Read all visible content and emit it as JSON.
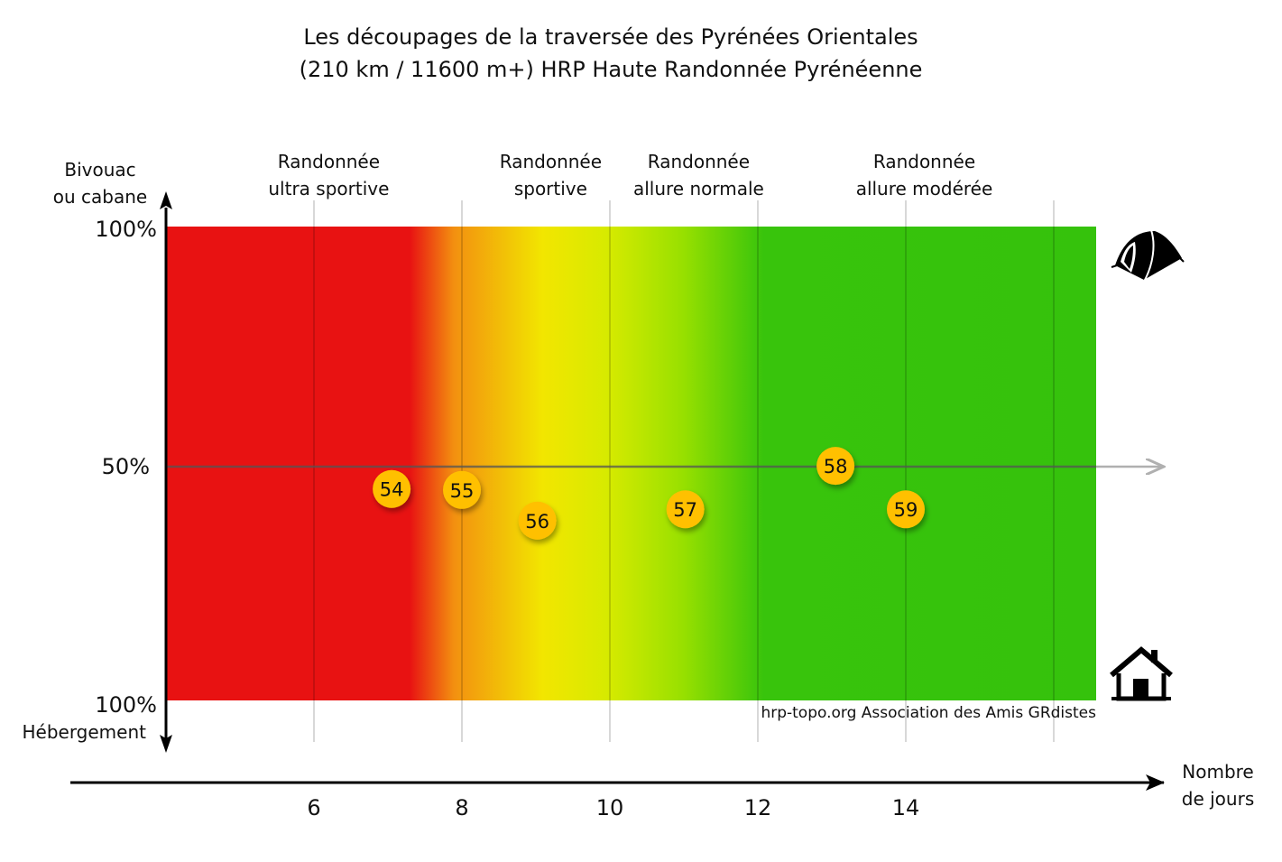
{
  "chart_data": {
    "type": "scatter",
    "title_line1": "Les découpages de la traversée des Pyrénées Orientales",
    "title_line2": "(210 km / 11600 m+) HRP Haute Randonnée Pyrénéenne",
    "xlabel_line1": "Nombre",
    "xlabel_line2": "de jours",
    "y_top_label_line1": "Bivouac",
    "y_top_label_line2": "ou cabane",
    "y_bottom_label": "Hébergement",
    "y_tick_labels": {
      "top": "100%",
      "middle": "50%",
      "bottom": "100%"
    },
    "xlim": [
      4,
      16.6
    ],
    "ylim": [
      0,
      100
    ],
    "x_ticks": [
      6,
      8,
      10,
      12,
      14
    ],
    "x_gridlines": [
      6,
      8,
      10,
      12,
      14,
      16
    ],
    "bands": [
      {
        "line1": "Randonnée",
        "line2": "ultra sportive",
        "center": 6.2
      },
      {
        "line1": "Randonnée",
        "line2": "sportive",
        "center": 9.2
      },
      {
        "line1": "Randonnée",
        "line2": "allure normale",
        "center": 11.2
      },
      {
        "line1": "Randonnée",
        "line2": "allure modérée",
        "center": 14.25
      }
    ],
    "gradient": [
      {
        "x": 4,
        "color": "#e81212"
      },
      {
        "x": 7.3,
        "color": "#e81212"
      },
      {
        "x": 7.9,
        "color": "#f39010"
      },
      {
        "x": 9.1,
        "color": "#f2e600"
      },
      {
        "x": 10,
        "color": "#d6ea00"
      },
      {
        "x": 11,
        "color": "#98e000"
      },
      {
        "x": 12.1,
        "color": "#38c40c"
      },
      {
        "x": 16.6,
        "color": "#35c20c"
      }
    ],
    "points": [
      {
        "label": "54",
        "x": 7.05,
        "y": 44.6
      },
      {
        "label": "55",
        "x": 8.0,
        "y": 44.4
      },
      {
        "label": "56",
        "x": 9.02,
        "y": 37.9
      },
      {
        "label": "57",
        "x": 11.02,
        "y": 40.3
      },
      {
        "label": "58",
        "x": 13.05,
        "y": 49.5
      },
      {
        "label": "59",
        "x": 14.0,
        "y": 40.3
      }
    ],
    "marker_color": "#ffc000",
    "credit": "hrp-topo.org Association des Amis GRdistes",
    "icons": {
      "top": "tent-icon",
      "bottom": "house-icon"
    }
  }
}
